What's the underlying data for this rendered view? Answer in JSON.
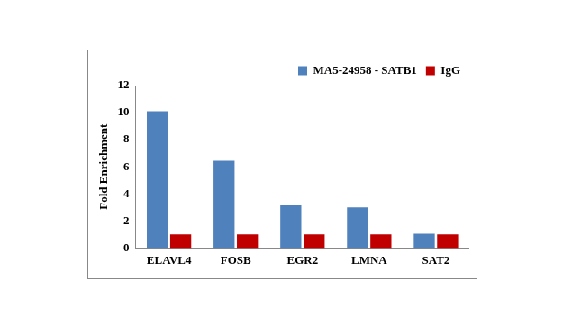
{
  "chart_data": {
    "type": "bar",
    "categories": [
      "ELAVL4",
      "FOSB",
      "EGR2",
      "LMNA",
      "SAT2"
    ],
    "series": [
      {
        "name": "MA5-24958 - SATB1",
        "color": "#4f81bd",
        "values": [
          10.1,
          6.45,
          3.15,
          3.0,
          1.05
        ]
      },
      {
        "name": "IgG",
        "color": "#c00000",
        "values": [
          1,
          1,
          1,
          1,
          1
        ]
      }
    ],
    "y_label": "Fold Enrichment",
    "ylim": [
      0,
      12
    ],
    "yticks": [
      0,
      2,
      4,
      6,
      8,
      10,
      12
    ],
    "grid": false,
    "legend": "top right"
  }
}
